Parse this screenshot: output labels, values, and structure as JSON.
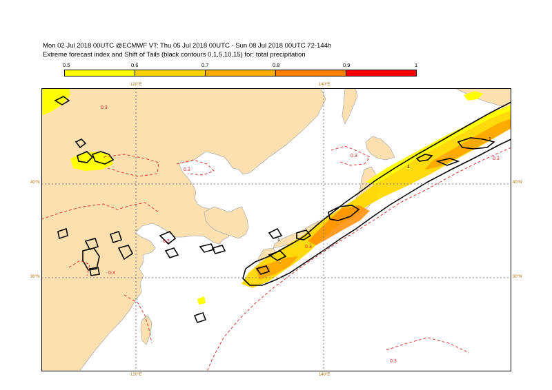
{
  "header": {
    "line1": "Mon 02 Jul 2018 00UTC @ECMWF VT: Thu 05 Jul 2018 00UTC - Sun 08 Jul 2018 00UTC  72-144h",
    "line2": "Extreme forecast index and Shift of Tails (black contours 0,1,5,10,15) for: total precipitation"
  },
  "colorbar": {
    "labels": [
      "0.5",
      "0.6",
      "0.7",
      "0.8",
      "0.9",
      "1"
    ],
    "colors": [
      "#ffff00",
      "#ffd000",
      "#ffaa00",
      "#ff7f00",
      "#ff0000"
    ]
  },
  "map": {
    "land_color": "#fde0b0",
    "sea_color": "#ffffff",
    "contour_label_sot": "1",
    "contour_label_efi": "0.3",
    "lat_labels": [
      "40°N",
      "30°N"
    ],
    "lon_labels": [
      "120°E",
      "140°E"
    ]
  }
}
